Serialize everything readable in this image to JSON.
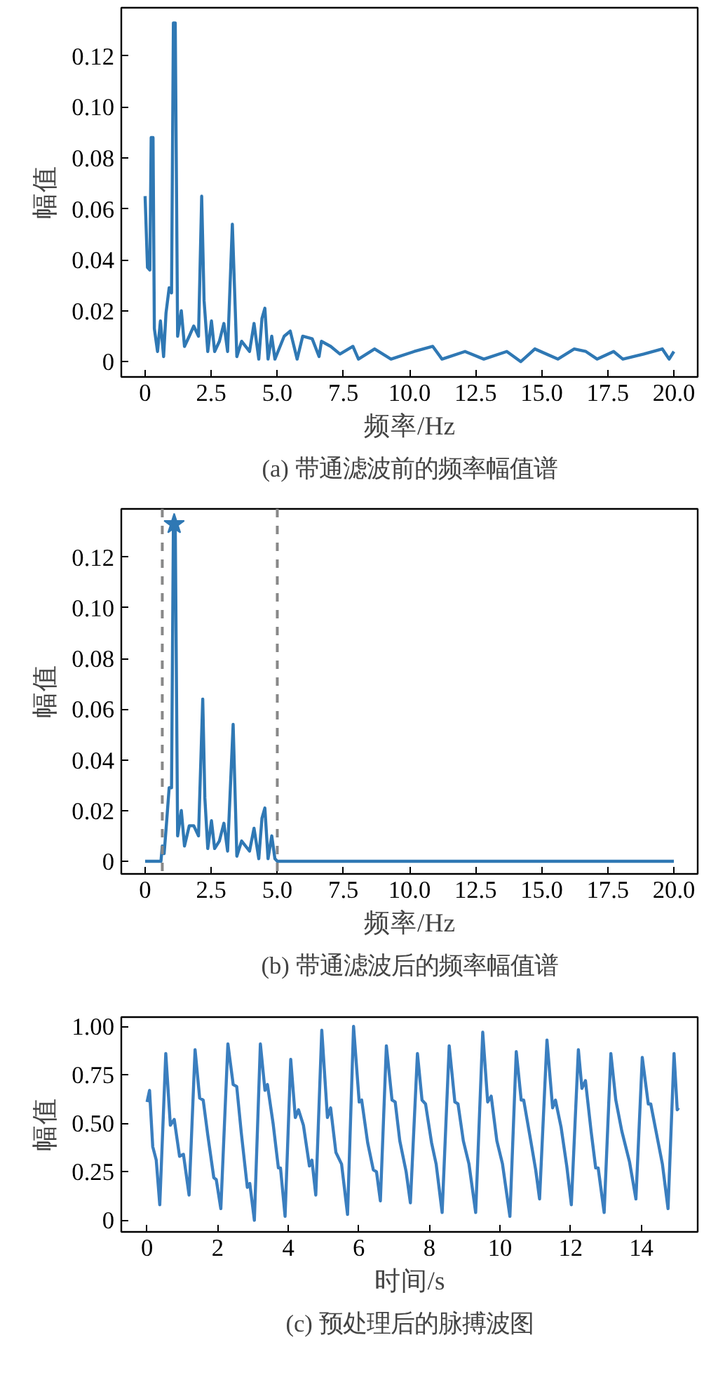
{
  "chart_data": [
    {
      "type": "line",
      "xlabel": "频率/Hz",
      "ylabel": "幅值",
      "annotations": [
        "(a) 带通滤波前的频率幅值谱"
      ],
      "xlim": [
        -0.9,
        20.9
      ],
      "ylim": [
        -0.006,
        0.139
      ],
      "xticks": [
        0,
        2.5,
        {
          "value": 5,
          "label": "5.0"
        },
        7.5,
        {
          "value": 10,
          "label": "10.0"
        },
        12.5,
        {
          "value": 15,
          "label": "15.0"
        },
        17.5,
        {
          "value": 20,
          "label": "20.0"
        }
      ],
      "yticks": [
        0,
        0.02,
        0.04,
        0.06,
        0.08,
        {
          "value": 0.1,
          "label": "0.10"
        },
        0.12
      ],
      "grid": false,
      "marker": "none",
      "line_style": "solid",
      "series": [
        {
          "color": "#2f78b4",
          "x": [
            0,
            0.09,
            0.18,
            0.23,
            0.3,
            0.35,
            0.47,
            0.58,
            0.7,
            0.79,
            0.91,
            1.0,
            1.07,
            1.14,
            1.23,
            1.37,
            1.49,
            1.67,
            1.84,
            2.02,
            2.14,
            2.23,
            2.37,
            2.51,
            2.63,
            2.81,
            2.98,
            3.12,
            3.3,
            3.47,
            3.65,
            3.95,
            4.12,
            4.3,
            4.42,
            4.53,
            4.65,
            4.79,
            4.91,
            5.26,
            5.49,
            5.75,
            5.96,
            6.32,
            6.58,
            6.67,
            7.02,
            7.37,
            7.86,
            8.07,
            8.68,
            9.3,
            10.18,
            10.88,
            11.23,
            12.1,
            12.81,
            13.68,
            14.21,
            14.74,
            15.61,
            16.23,
            16.67,
            17.1,
            17.72,
            18.07,
            18.86,
            19.56,
            19.82,
            20
          ],
          "values": [
            0.065,
            0.037,
            0.036,
            0.088,
            0.088,
            0.013,
            0.004,
            0.016,
            0.002,
            0.019,
            0.029,
            0.027,
            0.133,
            0.133,
            0.01,
            0.02,
            0.006,
            0.01,
            0.014,
            0.01,
            0.065,
            0.024,
            0.004,
            0.016,
            0.004,
            0.008,
            0.015,
            0.004,
            0.054,
            0.002,
            0.008,
            0.004,
            0.015,
            0.001,
            0.017,
            0.021,
            0.001,
            0.01,
            0.001,
            0.01,
            0.012,
            0.001,
            0.01,
            0.009,
            0.002,
            0.008,
            0.006,
            0.003,
            0.006,
            0.001,
            0.005,
            0.001,
            0.004,
            0.006,
            0.001,
            0.004,
            0.001,
            0.004,
            0.0,
            0.005,
            0.001,
            0.005,
            0.004,
            0.001,
            0.004,
            0.001,
            0.003,
            0.005,
            0.001,
            0.004
          ]
        }
      ]
    },
    {
      "type": "line",
      "xlabel": "频率/Hz",
      "ylabel": "幅值",
      "annotations": [
        "(b) 带通滤波后的频率幅值谱"
      ],
      "xlim": [
        -0.9,
        20.9
      ],
      "ylim": [
        -0.005,
        0.139
      ],
      "xticks": [
        0,
        2.5,
        {
          "value": 5,
          "label": "5.0"
        },
        7.5,
        {
          "value": 10,
          "label": "10.0"
        },
        12.5,
        {
          "value": 15,
          "label": "15.0"
        },
        17.5,
        {
          "value": 20,
          "label": "20.0"
        }
      ],
      "yticks": [
        0,
        0.02,
        0.04,
        0.06,
        0.08,
        {
          "value": 0.1,
          "label": "0.10"
        },
        0.12
      ],
      "grid": false,
      "marker": "none",
      "line_style": "solid",
      "ref_lines": [
        {
          "axis": "x",
          "value": 0.65,
          "color": "#888888",
          "line_style": "dashed"
        },
        {
          "axis": "x",
          "value": 5.0,
          "color": "#888888",
          "line_style": "dashed"
        }
      ],
      "series": [
        {
          "color": "#2f78b4",
          "x": [
            0,
            0.6,
            0.65,
            0.72,
            0.81,
            0.91,
            1.0,
            1.07,
            1.14,
            1.23,
            1.37,
            1.49,
            1.67,
            1.84,
            2.02,
            2.18,
            2.26,
            2.37,
            2.51,
            2.63,
            2.81,
            2.98,
            3.12,
            3.33,
            3.47,
            3.65,
            3.95,
            4.12,
            4.3,
            4.42,
            4.53,
            4.65,
            4.79,
            4.91,
            5.0,
            20
          ],
          "values": [
            0,
            0,
            0.006,
            0.003,
            0.015,
            0.029,
            0.029,
            0.133,
            0.133,
            0.01,
            0.02,
            0.006,
            0.014,
            0.014,
            0.01,
            0.064,
            0.025,
            0.005,
            0.016,
            0.005,
            0.008,
            0.015,
            0.004,
            0.054,
            0.002,
            0.008,
            0.004,
            0.013,
            0.001,
            0.017,
            0.021,
            0.001,
            0.01,
            0.001,
            0,
            0
          ]
        },
        {
          "type": "scatter",
          "marker": "star",
          "color": "#2f78b4",
          "x": [
            1.1
          ],
          "values": [
            0.133
          ]
        }
      ]
    },
    {
      "type": "line",
      "xlabel": "时间/s",
      "ylabel": "幅值",
      "annotations": [
        "(c) 预处理后的脉搏波图"
      ],
      "xlim": [
        -0.73,
        15.6
      ],
      "ylim": [
        -0.06,
        1.048
      ],
      "xticks": [
        0,
        2,
        4,
        6,
        8,
        10,
        12,
        14
      ],
      "yticks": [
        0,
        0.25,
        {
          "value": 0.5,
          "label": "0.50"
        },
        0.75,
        {
          "value": 1,
          "label": "1.00"
        }
      ],
      "grid": false,
      "marker": "none",
      "line_style": "solid",
      "series": [
        {
          "color": "#3a7ebf",
          "x": [
            0,
            0.07,
            0.16,
            0.26,
            0.36,
            0.53,
            0.66,
            0.77,
            0.92,
            1.03,
            1.19,
            1.36,
            1.49,
            1.59,
            1.72,
            1.89,
            1.96,
            2.09,
            2.29,
            2.44,
            2.54,
            2.67,
            2.84,
            2.91,
            3.04,
            3.21,
            3.34,
            3.41,
            3.57,
            3.72,
            3.78,
            3.91,
            4.07,
            4.2,
            4.29,
            4.43,
            4.6,
            4.67,
            4.78,
            4.95,
            5.11,
            5.2,
            5.35,
            5.51,
            5.68,
            5.85,
            6.01,
            6.08,
            6.25,
            6.41,
            6.5,
            6.61,
            6.78,
            6.94,
            7.03,
            7.16,
            7.34,
            7.46,
            7.66,
            7.79,
            7.89,
            8.06,
            8.19,
            8.36,
            8.56,
            8.72,
            8.81,
            8.96,
            9.12,
            9.31,
            9.51,
            9.65,
            9.75,
            9.91,
            10.07,
            10.28,
            10.46,
            10.6,
            10.67,
            10.87,
            11.01,
            11.12,
            11.33,
            11.49,
            11.57,
            11.73,
            11.89,
            12.02,
            12.22,
            12.32,
            12.42,
            12.58,
            12.71,
            12.78,
            12.95,
            13.14,
            13.28,
            13.45,
            13.67,
            13.85,
            14.03,
            14.2,
            14.27,
            14.44,
            14.6,
            14.76,
            14.93,
            15.02,
            15.06
          ],
          "values": [
            0.61,
            0.67,
            0.38,
            0.31,
            0.08,
            0.86,
            0.49,
            0.52,
            0.33,
            0.34,
            0.13,
            0.88,
            0.63,
            0.62,
            0.44,
            0.22,
            0.21,
            0.06,
            0.91,
            0.7,
            0.69,
            0.45,
            0.17,
            0.19,
            0.0,
            0.91,
            0.67,
            0.7,
            0.5,
            0.27,
            0.27,
            0.02,
            0.83,
            0.53,
            0.57,
            0.49,
            0.28,
            0.31,
            0.13,
            0.98,
            0.53,
            0.58,
            0.35,
            0.29,
            0.03,
            1.0,
            0.61,
            0.62,
            0.4,
            0.26,
            0.25,
            0.1,
            0.9,
            0.62,
            0.61,
            0.41,
            0.25,
            0.09,
            0.86,
            0.62,
            0.6,
            0.4,
            0.29,
            0.04,
            0.9,
            0.61,
            0.6,
            0.41,
            0.29,
            0.04,
            0.97,
            0.61,
            0.64,
            0.41,
            0.29,
            0.02,
            0.87,
            0.62,
            0.62,
            0.41,
            0.26,
            0.11,
            0.93,
            0.58,
            0.62,
            0.48,
            0.28,
            0.08,
            0.88,
            0.68,
            0.72,
            0.46,
            0.27,
            0.27,
            0.04,
            0.86,
            0.62,
            0.46,
            0.3,
            0.11,
            0.84,
            0.6,
            0.6,
            0.44,
            0.29,
            0.06,
            0.86,
            0.57,
            0.58
          ]
        }
      ]
    }
  ]
}
